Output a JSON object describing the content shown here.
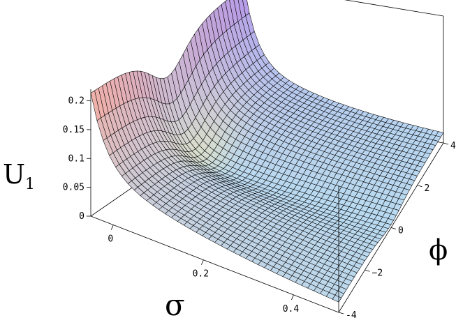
{
  "chart_data": {
    "type": "surface3d",
    "title": "",
    "zlabel": "U",
    "zlabel_sub": "1",
    "xlabel": "σ",
    "ylabel": "ϕ",
    "x_ticks": [
      {
        "value": 0,
        "label": "0"
      },
      {
        "value": 0.2,
        "label": "0.2"
      },
      {
        "value": 0.4,
        "label": "0.4"
      }
    ],
    "y_ticks": [
      {
        "value": -4,
        "label": "-4"
      },
      {
        "value": -2,
        "label": "−2"
      },
      {
        "value": 0,
        "label": "0"
      },
      {
        "value": 2,
        "label": "2"
      },
      {
        "value": 4,
        "label": "4"
      }
    ],
    "z_ticks": [
      {
        "value": 0,
        "label": "0"
      },
      {
        "value": 0.05,
        "label": "0.05"
      },
      {
        "value": 0.1,
        "label": "0.1"
      },
      {
        "value": 0.15,
        "label": "0.15"
      },
      {
        "value": 0.2,
        "label": "0.2"
      }
    ],
    "x_range": [
      -0.05,
      0.5
    ],
    "y_range": [
      -4,
      4
    ],
    "z_range": [
      0,
      0.22
    ],
    "z_clip": 0.215,
    "surface": {
      "description_points": [
        {
          "sigma": -0.05,
          "phi": 0,
          "U": 0.2
        },
        {
          "sigma": 0.0,
          "phi": 0,
          "U": 0.08
        },
        {
          "sigma": 0.1,
          "phi": 0,
          "U": 0.02
        },
        {
          "sigma": 0.5,
          "phi": 0,
          "U": 0.003
        },
        {
          "sigma": 0.0,
          "phi": 3,
          "U": 0.2
        },
        {
          "sigma": 0.0,
          "phi": -3,
          "U": 0.2
        }
      ]
    },
    "grid": false,
    "legend": "none",
    "colors": {
      "mesh_line": "#000000",
      "high_left": "#f3b0a6",
      "high_right": "#b69be8",
      "low": "#b8dcf2",
      "valley": "#f0f3b6"
    }
  }
}
